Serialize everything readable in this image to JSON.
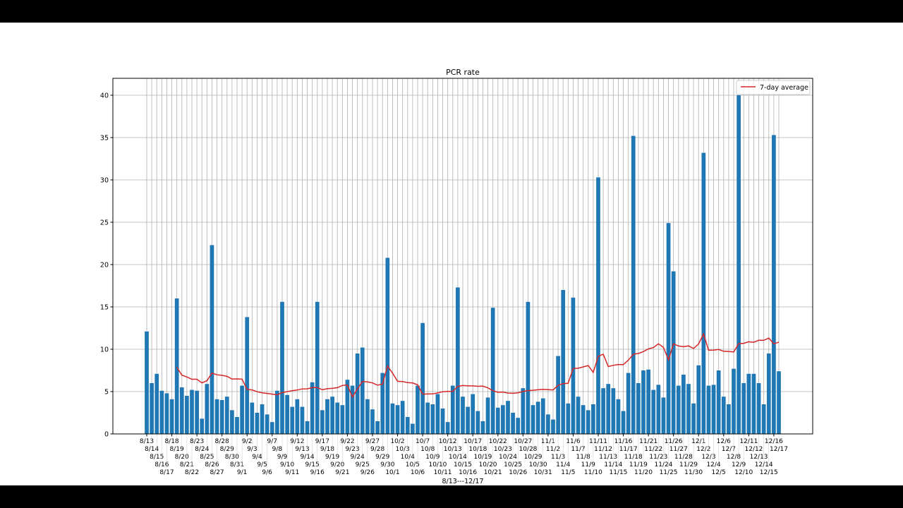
{
  "chart_data": {
    "type": "bar",
    "title": "PCR rate",
    "xlabel": "8/13---12/17",
    "ylabel": "",
    "ylim": [
      0,
      42
    ],
    "yticks": [
      0,
      5,
      10,
      15,
      20,
      25,
      30,
      35,
      40
    ],
    "grid": true,
    "legend_position": "top-right",
    "colors": {
      "bar": "#1f77b4",
      "average": "#d62728"
    },
    "categories": [
      "8/13",
      "8/14",
      "8/15",
      "8/16",
      "8/17",
      "8/18",
      "8/19",
      "8/20",
      "8/21",
      "8/22",
      "8/23",
      "8/24",
      "8/25",
      "8/26",
      "8/27",
      "8/28",
      "8/29",
      "8/30",
      "8/31",
      "9/1",
      "9/2",
      "9/3",
      "9/4",
      "9/5",
      "9/6",
      "9/7",
      "9/8",
      "9/9",
      "9/10",
      "9/11",
      "9/12",
      "9/13",
      "9/14",
      "9/15",
      "9/16",
      "9/17",
      "9/18",
      "9/19",
      "9/20",
      "9/21",
      "9/22",
      "9/23",
      "9/24",
      "9/25",
      "9/26",
      "9/27",
      "9/28",
      "9/29",
      "9/30",
      "10/1",
      "10/2",
      "10/3",
      "10/4",
      "10/5",
      "10/6",
      "10/7",
      "10/8",
      "10/9",
      "10/10",
      "10/11",
      "10/12",
      "10/13",
      "10/14",
      "10/15",
      "10/16",
      "10/17",
      "10/18",
      "10/19",
      "10/20",
      "10/21",
      "10/22",
      "10/23",
      "10/24",
      "10/25",
      "10/26",
      "10/27",
      "10/28",
      "10/29",
      "10/30",
      "10/31",
      "11/1",
      "11/2",
      "11/3",
      "11/4",
      "11/5",
      "11/6",
      "11/7",
      "11/8",
      "11/9",
      "11/10",
      "11/11",
      "11/12",
      "11/13",
      "11/14",
      "11/15",
      "11/16",
      "11/17",
      "11/18",
      "11/19",
      "11/20",
      "11/21",
      "11/22",
      "11/23",
      "11/24",
      "11/25",
      "11/26",
      "11/27",
      "11/28",
      "11/29",
      "11/30",
      "12/1",
      "12/2",
      "12/3",
      "12/4",
      "12/5",
      "12/6",
      "12/7",
      "12/8",
      "12/9",
      "12/10",
      "12/11",
      "12/12",
      "12/13",
      "12/14",
      "12/15",
      "12/16",
      "12/17"
    ],
    "values": [
      12.1,
      6.0,
      7.1,
      5.1,
      4.8,
      4.1,
      16.0,
      5.5,
      4.5,
      5.2,
      5.1,
      1.8,
      5.9,
      22.3,
      4.1,
      4.0,
      4.4,
      2.8,
      2.0,
      5.7,
      13.8,
      3.7,
      2.5,
      3.5,
      2.3,
      1.4,
      5.1,
      15.6,
      4.6,
      3.2,
      4.1,
      3.2,
      1.5,
      6.1,
      15.6,
      2.8,
      4.1,
      4.4,
      3.7,
      3.4,
      6.4,
      5.7,
      9.5,
      10.2,
      4.1,
      2.9,
      1.5,
      7.2,
      20.8,
      3.6,
      3.4,
      3.9,
      2.0,
      1.2,
      5.7,
      13.1,
      3.7,
      3.5,
      4.7,
      3.0,
      1.4,
      5.7,
      17.3,
      4.4,
      3.2,
      4.7,
      2.7,
      1.5,
      4.3,
      14.9,
      3.1,
      3.4,
      3.9,
      2.5,
      1.9,
      5.4,
      15.6,
      3.4,
      3.8,
      4.2,
      2.3,
      1.7,
      9.2,
      17.0,
      3.6,
      16.1,
      4.4,
      3.4,
      2.8,
      3.5,
      30.3,
      5.4,
      5.9,
      5.4,
      4.1,
      2.7,
      7.2,
      35.2,
      6.0,
      7.5,
      7.6,
      5.2,
      5.8,
      4.3,
      24.9,
      19.2,
      5.7,
      7.0,
      5.9,
      3.6,
      8.1,
      33.2,
      5.7,
      5.8,
      7.5,
      4.4,
      3.5,
      7.7,
      40.0,
      6.0,
      7.1,
      7.1,
      6.0,
      3.5,
      9.5,
      35.3,
      7.4
    ],
    "series": [
      {
        "name": "7-day average",
        "type": "line",
        "window": 7
      }
    ]
  }
}
